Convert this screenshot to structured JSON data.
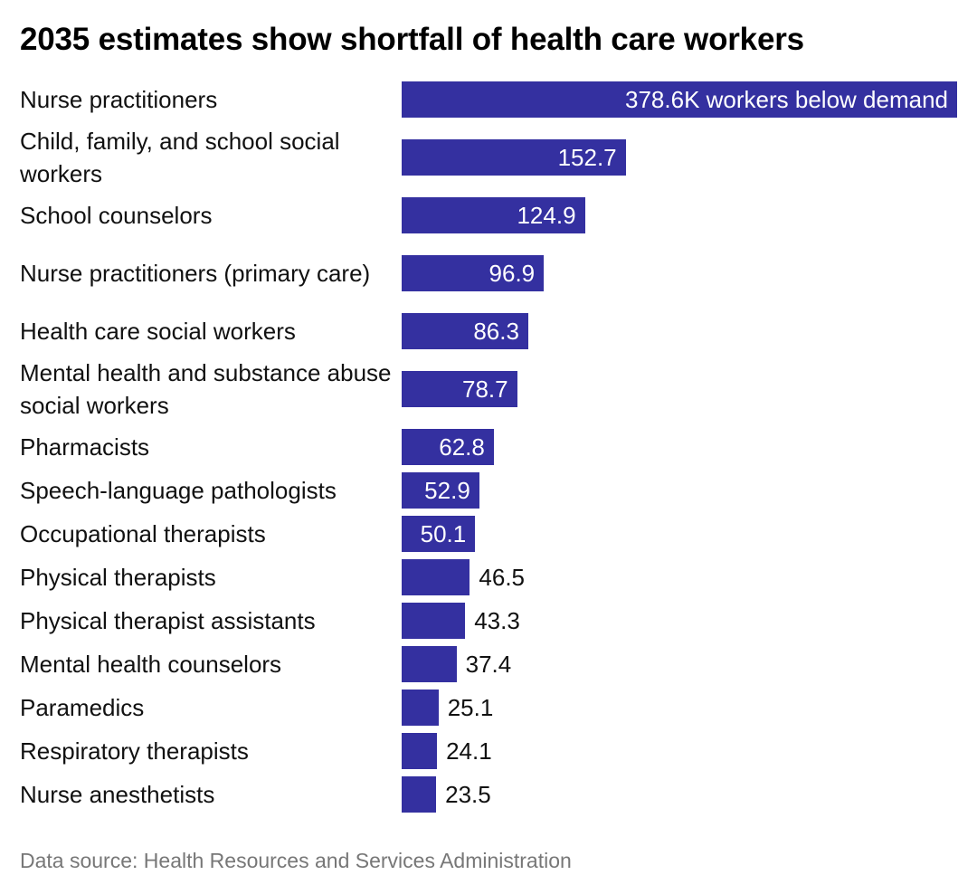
{
  "title": "2035 estimates show shortfall of health care workers",
  "source": "Data source: Health Resources and Services Administration",
  "colors": {
    "bar": "#3430a0",
    "label_inside": "#ffffff",
    "label_outside": "#111111"
  },
  "chart_data": {
    "type": "bar",
    "orientation": "horizontal",
    "title": "2035 estimates show shortfall of health care workers",
    "categories": [
      "Nurse practitioners",
      "Child, family, and school social workers",
      "School counselors",
      "Nurse practitioners (primary care)",
      "Health care social workers",
      "Mental health and substance abuse social workers",
      "Pharmacists",
      "Speech-language pathologists",
      "Occupational therapists",
      "Physical therapists",
      "Physical therapist assistants",
      "Mental health counselors",
      "Paramedics",
      "Respiratory therapists",
      "Nurse anesthetists"
    ],
    "values": [
      378.6,
      152.7,
      124.9,
      96.9,
      86.3,
      78.7,
      62.8,
      52.9,
      50.1,
      46.5,
      43.3,
      37.4,
      25.1,
      24.1,
      23.5
    ],
    "data_labels": [
      "378.6K workers below demand",
      "152.7",
      "124.9",
      "96.9",
      "86.3",
      "78.7",
      "62.8",
      "52.9",
      "50.1",
      "46.5",
      "43.3",
      "37.4",
      "25.1",
      "24.1",
      "23.5"
    ],
    "unit": "thousand workers below demand",
    "xlim": [
      0,
      378.6
    ],
    "grid": false,
    "legend": "none"
  }
}
